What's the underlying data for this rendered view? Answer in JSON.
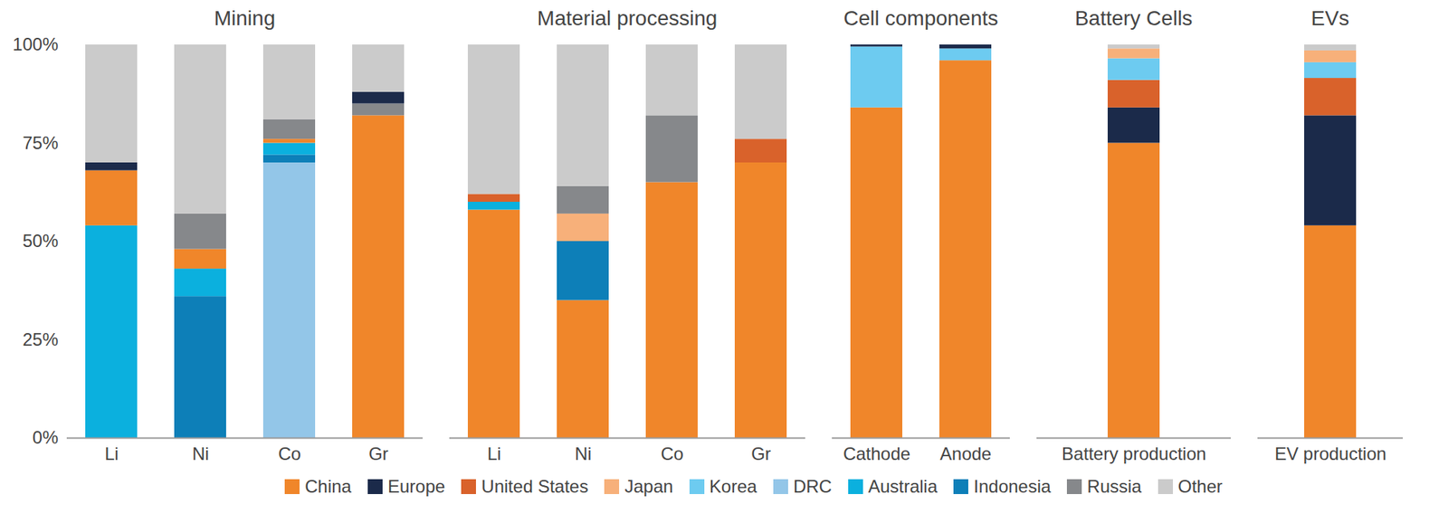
{
  "chart_data": {
    "type": "bar",
    "stacked": true,
    "grid": false,
    "legend": "bottom",
    "ylim": [
      0,
      100
    ],
    "yticks": [
      {
        "value": 0,
        "label": "0%"
      },
      {
        "value": 25,
        "label": "25%"
      },
      {
        "value": 50,
        "label": "50%"
      },
      {
        "value": 75,
        "label": "75%"
      },
      {
        "value": 100,
        "label": "100%"
      }
    ],
    "series": [
      {
        "name": "China",
        "color": "#f0862a"
      },
      {
        "name": "Europe",
        "color": "#1b2a4a"
      },
      {
        "name": "United States",
        "color": "#d9622b"
      },
      {
        "name": "Japan",
        "color": "#f7b07a"
      },
      {
        "name": "Korea",
        "color": "#6dcbf0"
      },
      {
        "name": "DRC",
        "color": "#93c6e8"
      },
      {
        "name": "Australia",
        "color": "#0bb0de"
      },
      {
        "name": "Indonesia",
        "color": "#0d7fb8"
      },
      {
        "name": "Russia",
        "color": "#86888b"
      },
      {
        "name": "Other",
        "color": "#cbcbcb"
      }
    ],
    "panels": [
      {
        "title": "Mining",
        "bars": [
          {
            "category": "Li",
            "segments": [
              {
                "series": "Australia",
                "value": 54
              },
              {
                "series": "China",
                "value": 14
              },
              {
                "series": "Europe",
                "value": 2
              },
              {
                "series": "Other",
                "value": 30
              }
            ]
          },
          {
            "category": "Ni",
            "segments": [
              {
                "series": "Indonesia",
                "value": 36
              },
              {
                "series": "Australia",
                "value": 7
              },
              {
                "series": "China",
                "value": 5
              },
              {
                "series": "Russia",
                "value": 9
              },
              {
                "series": "Other",
                "value": 43
              }
            ]
          },
          {
            "category": "Co",
            "segments": [
              {
                "series": "DRC",
                "value": 70
              },
              {
                "series": "Indonesia",
                "value": 2
              },
              {
                "series": "Australia",
                "value": 3
              },
              {
                "series": "China",
                "value": 1
              },
              {
                "series": "Russia",
                "value": 5
              },
              {
                "series": "Other",
                "value": 19
              }
            ]
          },
          {
            "category": "Gr",
            "segments": [
              {
                "series": "China",
                "value": 82
              },
              {
                "series": "Russia",
                "value": 3
              },
              {
                "series": "Europe",
                "value": 3
              },
              {
                "series": "Other",
                "value": 12
              }
            ]
          }
        ]
      },
      {
        "title": "Material processing",
        "bars": [
          {
            "category": "Li",
            "segments": [
              {
                "series": "China",
                "value": 58
              },
              {
                "series": "Australia",
                "value": 2
              },
              {
                "series": "United States",
                "value": 2
              },
              {
                "series": "Other",
                "value": 38
              }
            ]
          },
          {
            "category": "Ni",
            "segments": [
              {
                "series": "China",
                "value": 35
              },
              {
                "series": "Indonesia",
                "value": 15
              },
              {
                "series": "Japan",
                "value": 7
              },
              {
                "series": "Russia",
                "value": 7
              },
              {
                "series": "Other",
                "value": 36
              }
            ]
          },
          {
            "category": "Co",
            "segments": [
              {
                "series": "China",
                "value": 65
              },
              {
                "series": "Russia",
                "value": 17
              },
              {
                "series": "Other",
                "value": 18
              }
            ]
          },
          {
            "category": "Gr",
            "segments": [
              {
                "series": "China",
                "value": 70
              },
              {
                "series": "United States",
                "value": 6
              },
              {
                "series": "Other",
                "value": 24
              }
            ]
          }
        ]
      },
      {
        "title": "Cell components",
        "bars": [
          {
            "category": "Cathode",
            "segments": [
              {
                "series": "China",
                "value": 84
              },
              {
                "series": "Korea",
                "value": 15.5
              },
              {
                "series": "Europe",
                "value": 0.5
              }
            ]
          },
          {
            "category": "Anode",
            "segments": [
              {
                "series": "China",
                "value": 96
              },
              {
                "series": "Korea",
                "value": 3
              },
              {
                "series": "Europe",
                "value": 1
              }
            ]
          }
        ]
      },
      {
        "title": "Battery Cells",
        "bars": [
          {
            "category": "Battery production",
            "segments": [
              {
                "series": "China",
                "value": 75
              },
              {
                "series": "Europe",
                "value": 9
              },
              {
                "series": "United States",
                "value": 7
              },
              {
                "series": "Korea",
                "value": 5.5
              },
              {
                "series": "Japan",
                "value": 2.5
              },
              {
                "series": "Other",
                "value": 1
              }
            ]
          }
        ]
      },
      {
        "title": "EVs",
        "bars": [
          {
            "category": "EV production",
            "segments": [
              {
                "series": "China",
                "value": 54
              },
              {
                "series": "Europe",
                "value": 28
              },
              {
                "series": "United States",
                "value": 9.5
              },
              {
                "series": "Korea",
                "value": 4
              },
              {
                "series": "Japan",
                "value": 3
              },
              {
                "series": "Other",
                "value": 1.5
              }
            ]
          }
        ]
      }
    ]
  }
}
